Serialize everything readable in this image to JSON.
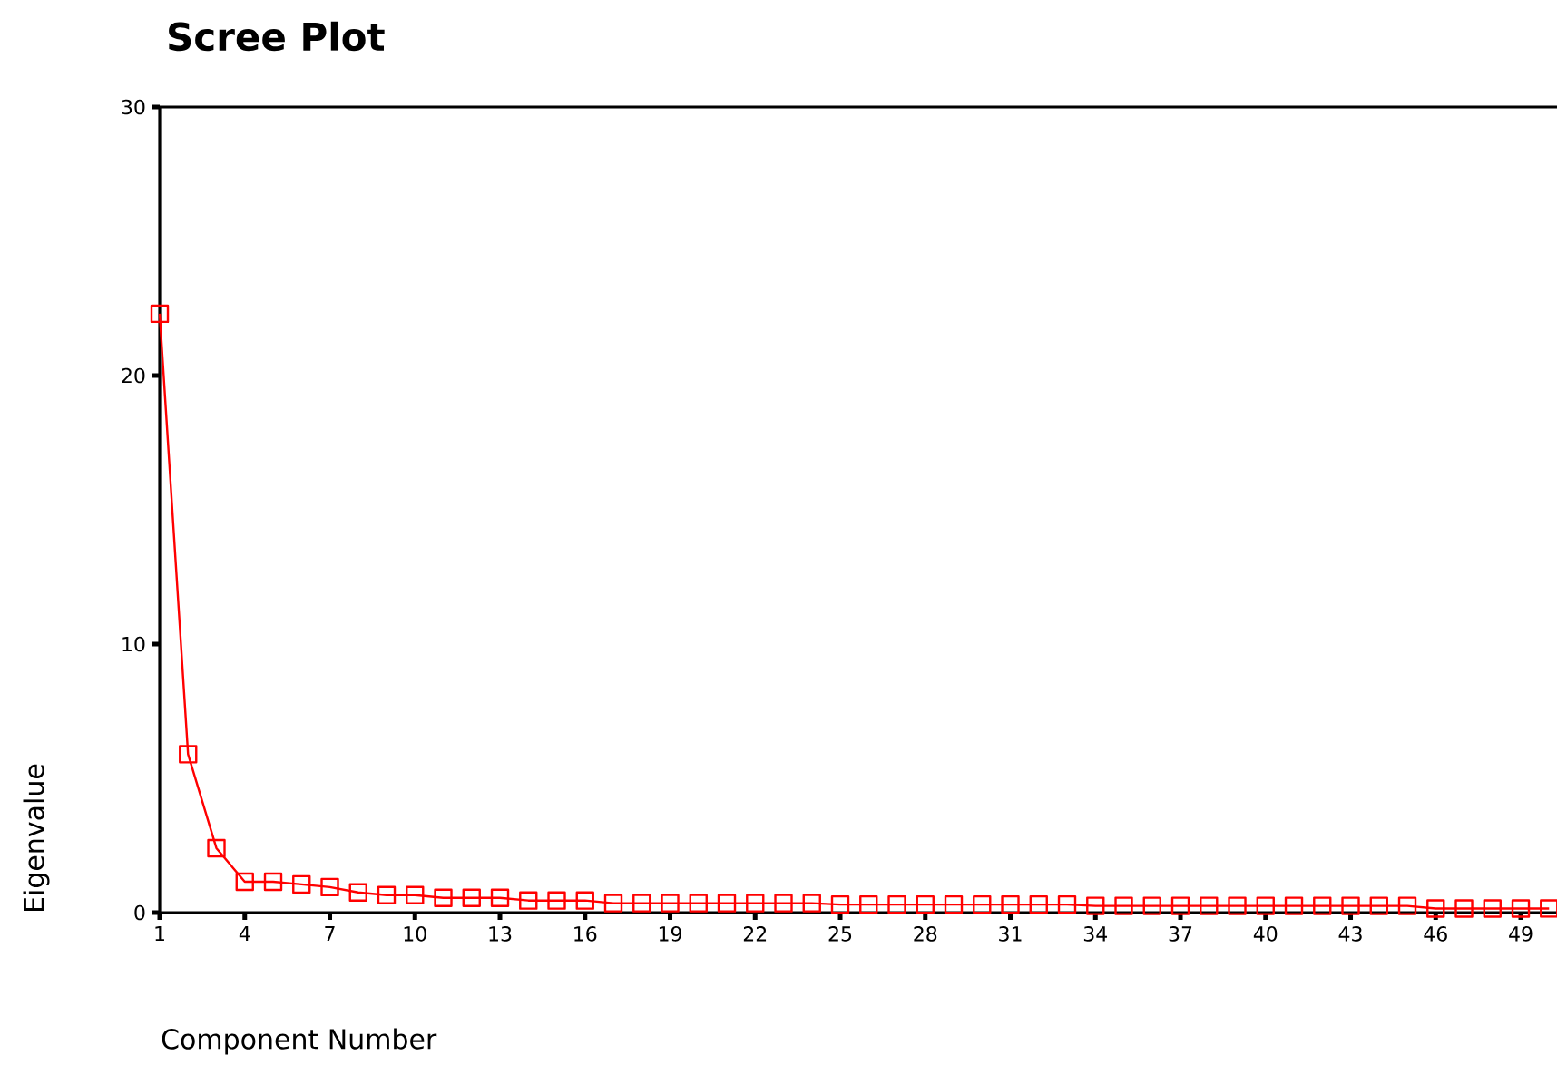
{
  "chart_data": {
    "type": "line",
    "title": "Scree Plot",
    "xlabel": "Component Number",
    "ylabel": "Eigenvalue",
    "x": [
      1,
      2,
      3,
      4,
      5,
      6,
      7,
      8,
      9,
      10,
      11,
      12,
      13,
      14,
      15,
      16,
      17,
      18,
      19,
      20,
      21,
      22,
      23,
      24,
      25,
      26,
      27,
      28,
      29,
      30,
      31,
      32,
      33,
      34,
      35,
      36,
      37,
      38,
      39,
      40,
      41,
      42,
      43,
      44,
      45,
      46,
      47,
      48,
      49,
      50
    ],
    "series": [
      {
        "color": "#ff0000",
        "values": [
          22.3,
          5.9,
          2.4,
          1.15,
          1.15,
          1.05,
          0.95,
          0.75,
          0.65,
          0.65,
          0.55,
          0.55,
          0.55,
          0.45,
          0.45,
          0.45,
          0.35,
          0.35,
          0.35,
          0.35,
          0.35,
          0.35,
          0.35,
          0.35,
          0.3,
          0.3,
          0.3,
          0.3,
          0.3,
          0.3,
          0.3,
          0.3,
          0.3,
          0.25,
          0.25,
          0.25,
          0.25,
          0.25,
          0.25,
          0.25,
          0.25,
          0.25,
          0.25,
          0.25,
          0.25,
          0.15,
          0.15,
          0.15,
          0.15,
          0.15
        ]
      }
    ],
    "xlim": [
      1,
      50.28
    ],
    "xticks": [
      1,
      4,
      7,
      10,
      13,
      16,
      19,
      22,
      25,
      28,
      31,
      34,
      37,
      40,
      43,
      46,
      49
    ],
    "ylim": [
      0,
      30
    ],
    "yticks": [
      0,
      10,
      20,
      30
    ],
    "marker": "square",
    "line_style": "solid",
    "grid": false
  }
}
